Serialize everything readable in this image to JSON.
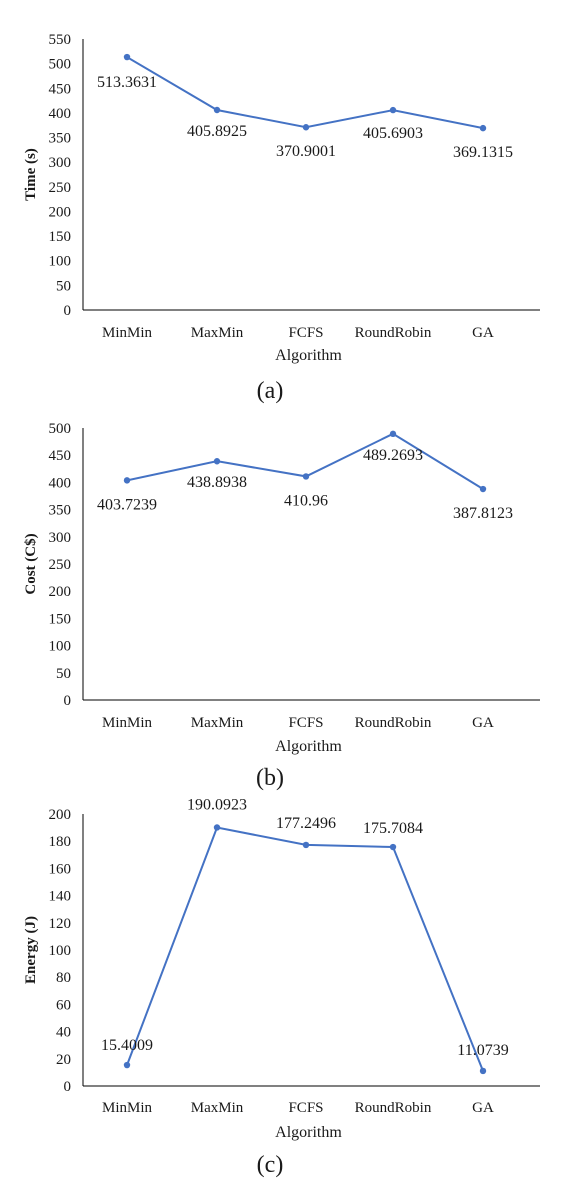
{
  "chart_data": [
    {
      "type": "line",
      "categories": [
        "MinMin",
        "MaxMin",
        "FCFS",
        "RoundRobin",
        "GA"
      ],
      "values": [
        513.3631,
        405.8925,
        370.9001,
        405.6903,
        369.1315
      ],
      "data_labels": [
        "513.3631",
        "405.8925",
        "370.9001",
        "405.6903",
        "369.1315"
      ],
      "xlabel": "Algorithm",
      "ylabel": "Time (s)",
      "ylim": [
        0,
        550
      ],
      "yticks": [
        0,
        50,
        100,
        150,
        200,
        250,
        300,
        350,
        400,
        450,
        500,
        550
      ],
      "caption": "(a)",
      "color": "#4472C4",
      "grid": false
    },
    {
      "type": "line",
      "categories": [
        "MinMin",
        "MaxMin",
        "FCFS",
        "RoundRobin",
        "GA"
      ],
      "values": [
        403.7239,
        438.8938,
        410.96,
        489.2693,
        387.8123
      ],
      "data_labels": [
        "403.7239",
        "438.8938",
        "410.96",
        "489.2693",
        "387.8123"
      ],
      "xlabel": "Algorithm",
      "ylabel": "Cost (C$)",
      "ylim": [
        0,
        500
      ],
      "yticks": [
        0,
        50,
        100,
        150,
        200,
        250,
        300,
        350,
        400,
        450,
        500
      ],
      "caption": "(b)",
      "color": "#4472C4",
      "grid": false
    },
    {
      "type": "line",
      "categories": [
        "MinMin",
        "MaxMin",
        "FCFS",
        "RoundRobin",
        "GA"
      ],
      "values": [
        15.4009,
        190.0923,
        177.2496,
        175.7084,
        11.0739
      ],
      "data_labels": [
        "15.4009",
        "190.0923",
        "177.2496",
        "175.7084",
        "11.0739"
      ],
      "xlabel": "Algorithm",
      "ylabel": "Energy (J)",
      "ylim": [
        0,
        200
      ],
      "yticks": [
        0,
        20,
        40,
        60,
        80,
        100,
        120,
        140,
        160,
        180,
        200
      ],
      "caption": "(c)",
      "color": "#4472C4",
      "grid": false
    }
  ]
}
